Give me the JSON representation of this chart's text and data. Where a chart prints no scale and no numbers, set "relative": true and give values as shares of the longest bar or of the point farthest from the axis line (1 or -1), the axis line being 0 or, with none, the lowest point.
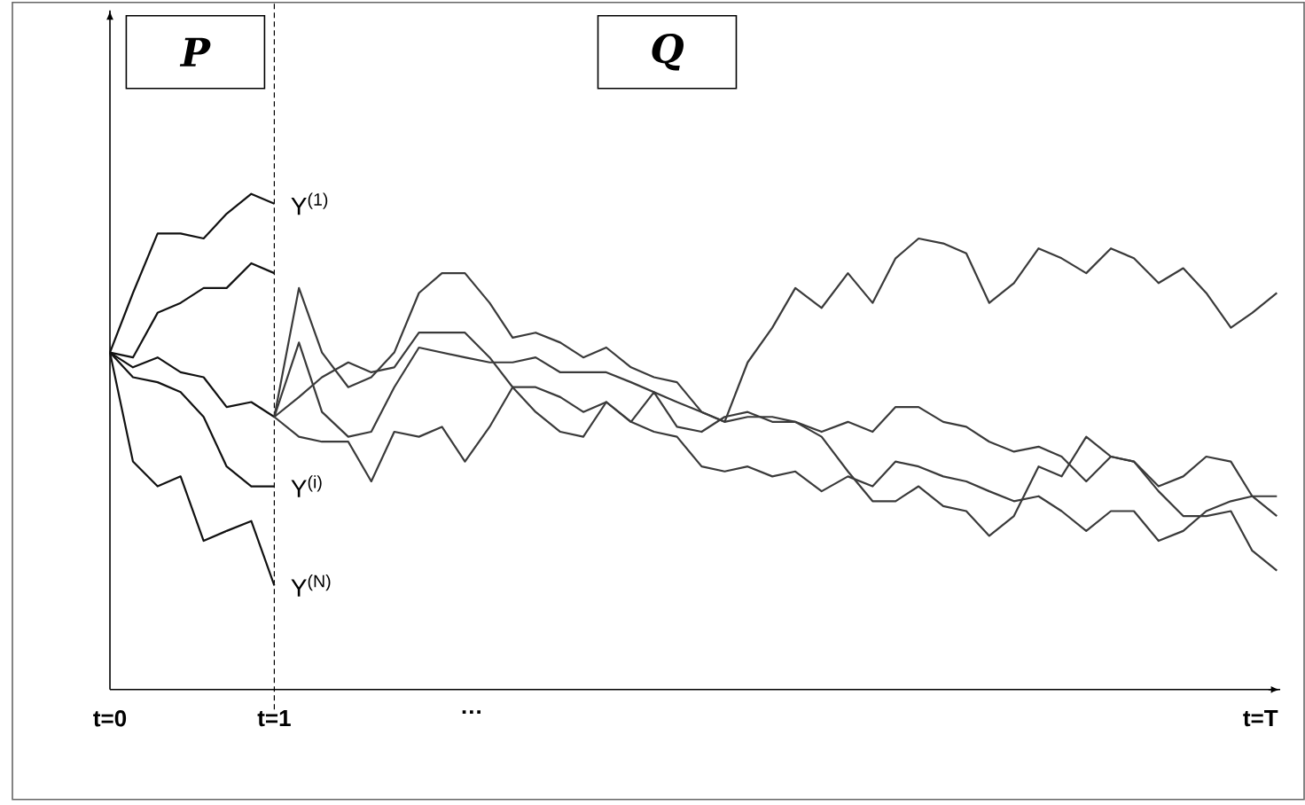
{
  "chart_data": {
    "type": "line",
    "relative": true,
    "xlim": [
      0,
      7.12
    ],
    "xticks": [
      {
        "value": 0,
        "label": "t=0"
      },
      {
        "value": 1,
        "label": "t=1"
      },
      {
        "value": 2.2,
        "label": "…"
      },
      {
        "value": 7,
        "label": "t=T"
      }
    ],
    "annotations": [
      "P",
      "Q"
    ],
    "ref_lines": [
      {
        "axis": "x",
        "value": 1,
        "line_style": "dashed",
        "color": "#000000"
      }
    ],
    "series": [
      {
        "name": "Y$^{(1)}$",
        "color": "#111111",
        "x": [
          0,
          0.14,
          0.29,
          0.43,
          0.57,
          0.71,
          0.86,
          1
        ],
        "values": [
          0.68,
          0.8,
          0.92,
          0.92,
          0.91,
          0.96,
          1.0,
          0.98
        ]
      },
      {
        "color": "#111111",
        "x": [
          0,
          0.14,
          0.29,
          0.43,
          0.57,
          0.71,
          0.86,
          1
        ],
        "values": [
          0.68,
          0.67,
          0.76,
          0.78,
          0.81,
          0.81,
          0.86,
          0.84
        ]
      },
      {
        "color": "#111111",
        "x": [
          0,
          0.14,
          0.29,
          0.43,
          0.57,
          0.71,
          0.86,
          1
        ],
        "values": [
          0.68,
          0.65,
          0.67,
          0.64,
          0.63,
          0.57,
          0.58,
          0.55
        ]
      },
      {
        "name": "Y$^{(i)}$",
        "color": "#111111",
        "x": [
          0,
          0.14,
          0.29,
          0.43,
          0.57,
          0.71,
          0.86,
          1
        ],
        "values": [
          0.68,
          0.63,
          0.62,
          0.6,
          0.55,
          0.45,
          0.41,
          0.41
        ]
      },
      {
        "name": "Y$^{(N)}$",
        "color": "#111111",
        "x": [
          0,
          0.14,
          0.29,
          0.43,
          0.57,
          0.71,
          0.86,
          1
        ],
        "values": [
          0.68,
          0.46,
          0.41,
          0.43,
          0.3,
          0.32,
          0.34,
          0.21
        ]
      },
      {
        "color": "#3a3a3a",
        "x": [
          1,
          1.15,
          1.29,
          1.45,
          1.59,
          1.73,
          1.88,
          2.02,
          2.16,
          2.31,
          2.45,
          2.59,
          2.74,
          2.88,
          3.02,
          3.17,
          3.31,
          3.45,
          3.6,
          3.74,
          3.88,
          4.03,
          4.17,
          4.33,
          4.49,
          4.64,
          4.78,
          4.92,
          5.07,
          5.21,
          5.35,
          5.5,
          5.65,
          5.79,
          5.94,
          6.09,
          6.23,
          6.38,
          6.53,
          6.67,
          6.82,
          6.95,
          7.1
        ],
        "values": [
          0.55,
          0.81,
          0.68,
          0.61,
          0.63,
          0.68,
          0.8,
          0.84,
          0.84,
          0.78,
          0.71,
          0.72,
          0.7,
          0.67,
          0.69,
          0.65,
          0.63,
          0.62,
          0.56,
          0.54,
          0.66,
          0.73,
          0.81,
          0.77,
          0.84,
          0.78,
          0.87,
          0.91,
          0.9,
          0.88,
          0.78,
          0.82,
          0.89,
          0.87,
          0.84,
          0.89,
          0.87,
          0.82,
          0.85,
          0.8,
          0.73,
          0.76,
          0.8
        ]
      },
      {
        "color": "#3a3a3a",
        "x": [
          1,
          1.15,
          1.29,
          1.45,
          1.59,
          1.73,
          1.88,
          2.02,
          2.16,
          2.31,
          2.45,
          2.59,
          2.74,
          2.88,
          3.02,
          3.17,
          3.31,
          3.45,
          3.6,
          3.74,
          3.88,
          4.03,
          4.17,
          4.33,
          4.49,
          4.64,
          4.78,
          4.92,
          5.07,
          5.21,
          5.35,
          5.5,
          5.65,
          5.79,
          5.94,
          6.09,
          6.23,
          6.38,
          6.53,
          6.67,
          6.82,
          6.95,
          7.1
        ],
        "values": [
          0.55,
          0.7,
          0.56,
          0.51,
          0.52,
          0.61,
          0.69,
          0.68,
          0.67,
          0.66,
          0.66,
          0.67,
          0.64,
          0.64,
          0.64,
          0.62,
          0.6,
          0.58,
          0.56,
          0.54,
          0.55,
          0.55,
          0.54,
          0.52,
          0.54,
          0.52,
          0.57,
          0.57,
          0.54,
          0.53,
          0.5,
          0.48,
          0.49,
          0.47,
          0.42,
          0.47,
          0.46,
          0.41,
          0.43,
          0.47,
          0.46,
          0.39,
          0.35
        ]
      },
      {
        "color": "#3a3a3a",
        "x": [
          1,
          1.15,
          1.29,
          1.45,
          1.59,
          1.73,
          1.88,
          2.02,
          2.16,
          2.31,
          2.45,
          2.59,
          2.74,
          2.88,
          3.02,
          3.17,
          3.31,
          3.45,
          3.6,
          3.74,
          3.88,
          4.03,
          4.17,
          4.33,
          4.49,
          4.64,
          4.78,
          4.92,
          5.07,
          5.21,
          5.35,
          5.5,
          5.65,
          5.79,
          5.94,
          6.09,
          6.23,
          6.38,
          6.53,
          6.67,
          6.82,
          6.95,
          7.1
        ],
        "values": [
          0.55,
          0.59,
          0.63,
          0.66,
          0.64,
          0.65,
          0.72,
          0.72,
          0.72,
          0.67,
          0.61,
          0.56,
          0.52,
          0.51,
          0.58,
          0.54,
          0.52,
          0.51,
          0.45,
          0.44,
          0.45,
          0.43,
          0.44,
          0.4,
          0.43,
          0.41,
          0.46,
          0.45,
          0.43,
          0.42,
          0.4,
          0.38,
          0.39,
          0.36,
          0.32,
          0.36,
          0.36,
          0.3,
          0.32,
          0.36,
          0.38,
          0.39,
          0.39
        ]
      },
      {
        "color": "#3a3a3a",
        "x": [
          1,
          1.15,
          1.29,
          1.45,
          1.59,
          1.73,
          1.88,
          2.02,
          2.16,
          2.31,
          2.45,
          2.59,
          2.74,
          2.88,
          3.02,
          3.17,
          3.31,
          3.45,
          3.6,
          3.74,
          3.88,
          4.03,
          4.17,
          4.33,
          4.49,
          4.64,
          4.78,
          4.92,
          5.07,
          5.21,
          5.35,
          5.5,
          5.65,
          5.79,
          5.94,
          6.09,
          6.23,
          6.38,
          6.53,
          6.67,
          6.82,
          6.95,
          7.1
        ],
        "values": [
          0.55,
          0.51,
          0.5,
          0.5,
          0.42,
          0.52,
          0.51,
          0.53,
          0.46,
          0.53,
          0.61,
          0.61,
          0.59,
          0.56,
          0.58,
          0.54,
          0.6,
          0.53,
          0.52,
          0.55,
          0.56,
          0.54,
          0.54,
          0.51,
          0.44,
          0.38,
          0.38,
          0.41,
          0.37,
          0.36,
          0.31,
          0.35,
          0.45,
          0.43,
          0.51,
          0.47,
          0.46,
          0.4,
          0.35,
          0.35,
          0.36,
          0.28,
          0.24
        ]
      }
    ]
  }
}
